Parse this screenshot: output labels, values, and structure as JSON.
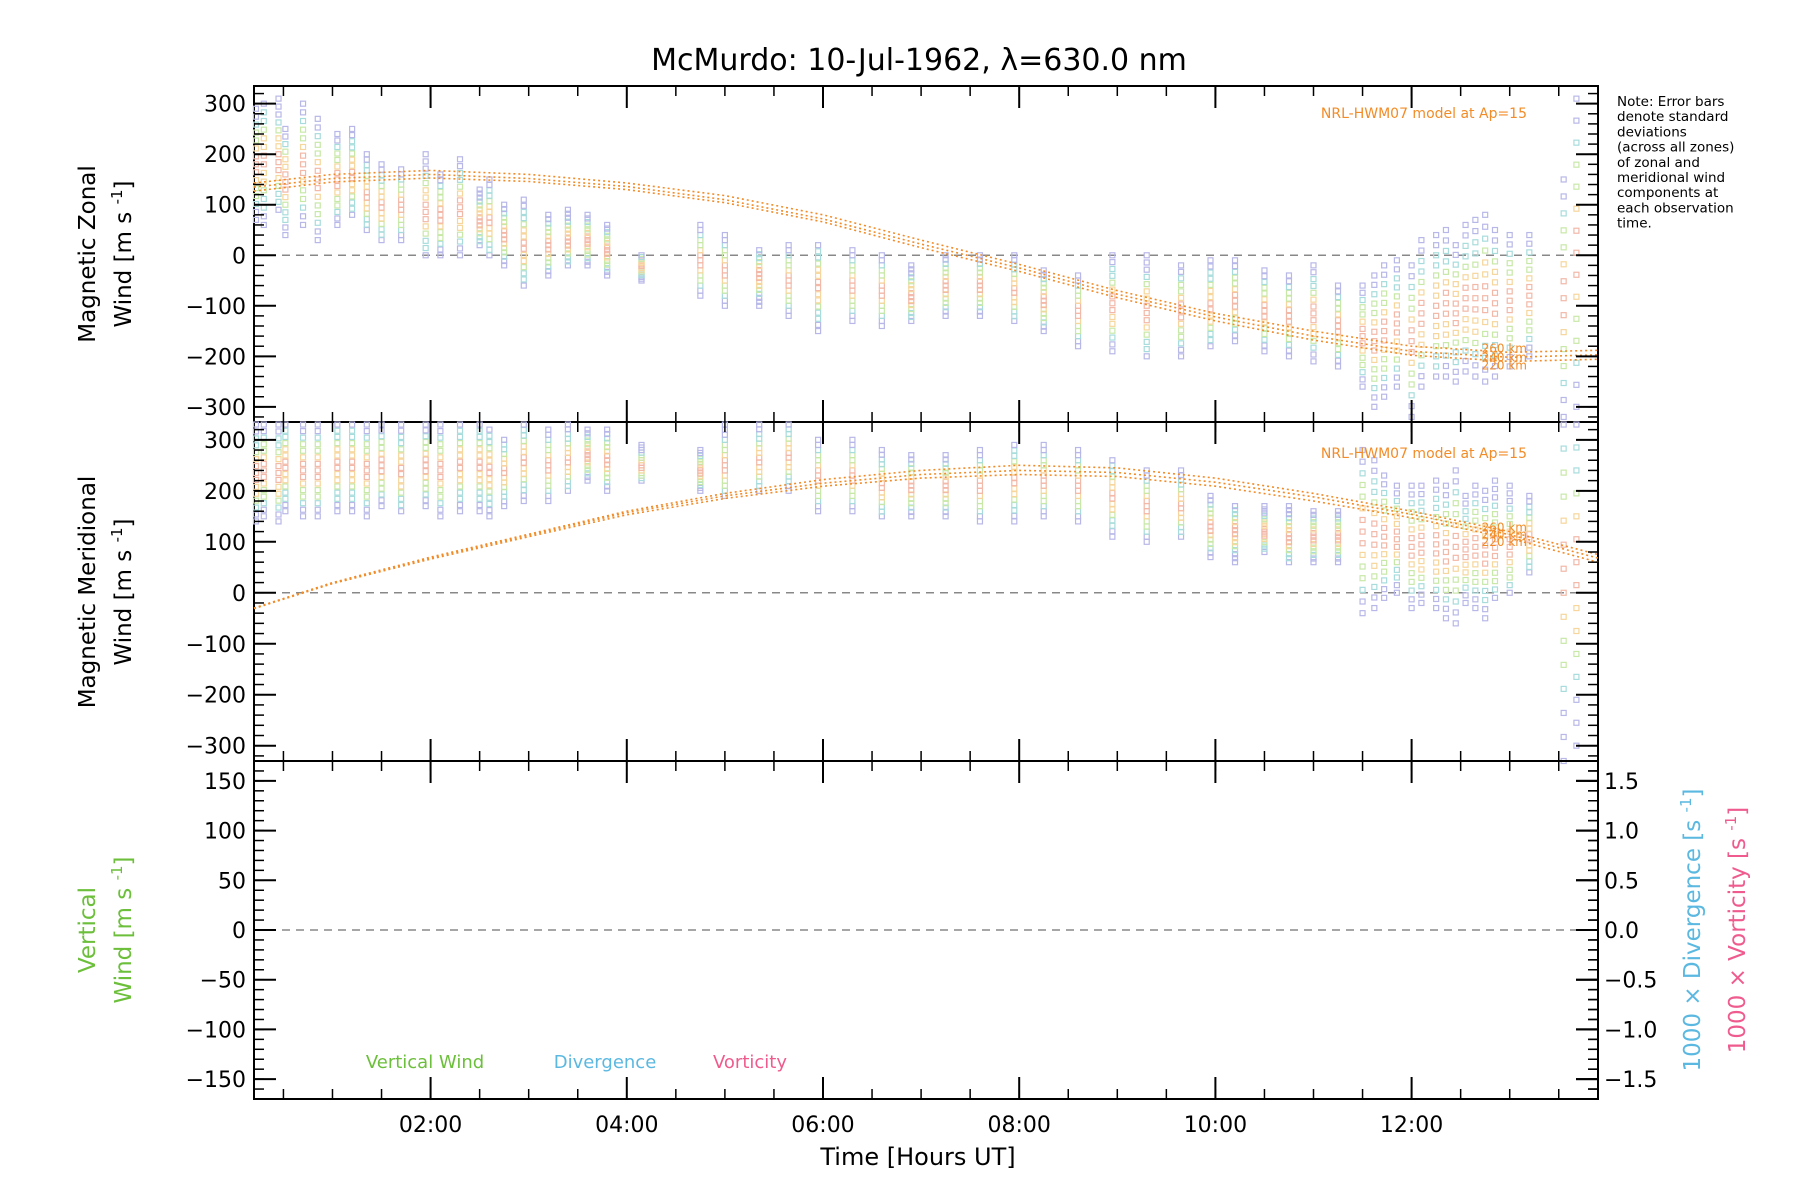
{
  "title": "McMurdo: 10-Jul-1962, λ=630.0 nm",
  "note": [
    "Note: Error bars",
    "denote standard",
    "deviations",
    "(across all zones)",
    "of zonal and",
    "meridional wind",
    "components at",
    "each observation",
    "time."
  ],
  "colors": {
    "model": "#f28c28",
    "zero_line": "#888888",
    "vertical": "#6cbf3a",
    "divergence": "#5bb8e0",
    "vorticity": "#ef5b8e",
    "error_bar_palette": [
      "#f2b8a8",
      "#f6d69c",
      "#c8e8a8",
      "#a8dcdc",
      "#b8b8e8"
    ]
  },
  "chart_data": [
    {
      "type": "scatter",
      "panel": "zonal",
      "ylabel": [
        "Magnetic Zonal",
        "Wind [m s⁻¹]"
      ],
      "ylabel_unit": "m s",
      "ylabel_exp": "-1",
      "ylim": [
        -330,
        335
      ],
      "xlim": [
        0.2,
        13.9
      ],
      "yticks": [
        300,
        200,
        100,
        0,
        -100,
        -200,
        -300
      ],
      "zero_line": true,
      "model_label": "NRL-HWM07 model at Ap=15",
      "model_curves": [
        {
          "name": "260 km",
          "x": [
            0.2,
            1.0,
            2.0,
            3.0,
            4.0,
            5.0,
            6.0,
            7.0,
            8.0,
            9.0,
            10.0,
            11.0,
            12.0,
            13.0,
            13.9
          ],
          "y": [
            143,
            160,
            168,
            160,
            143,
            118,
            80,
            30,
            -18,
            -70,
            -115,
            -150,
            -180,
            -192,
            -188
          ]
        },
        {
          "name": "240 km",
          "x": [
            0.2,
            1.0,
            2.0,
            3.0,
            4.0,
            5.0,
            6.0,
            7.0,
            8.0,
            9.0,
            10.0,
            11.0,
            12.0,
            13.0,
            13.9
          ],
          "y": [
            135,
            152,
            160,
            152,
            136,
            110,
            72,
            22,
            -25,
            -77,
            -122,
            -160,
            -190,
            -202,
            -197
          ]
        },
        {
          "name": "220 km",
          "x": [
            0.2,
            1.0,
            2.0,
            3.0,
            4.0,
            5.0,
            6.0,
            7.0,
            8.0,
            9.0,
            10.0,
            11.0,
            12.0,
            13.0,
            13.9
          ],
          "y": [
            127,
            145,
            153,
            146,
            130,
            104,
            66,
            15,
            -32,
            -84,
            -130,
            -168,
            -198,
            -210,
            -206
          ]
        }
      ],
      "observations": {
        "x": [
          0.22,
          0.3,
          0.45,
          0.52,
          0.7,
          0.85,
          1.05,
          1.2,
          1.35,
          1.5,
          1.7,
          1.95,
          2.1,
          2.3,
          2.5,
          2.6,
          2.75,
          2.95,
          3.2,
          3.4,
          3.6,
          3.8,
          4.15,
          4.75,
          5.0,
          5.35,
          5.65,
          5.95,
          6.3,
          6.6,
          6.9,
          7.25,
          7.6,
          7.95,
          8.25,
          8.6,
          8.95,
          9.3,
          9.65,
          9.95,
          10.2,
          10.5,
          10.75,
          11.0,
          11.25,
          11.5,
          11.62,
          11.72,
          11.85,
          12.0,
          12.1,
          12.25,
          12.35,
          12.45,
          12.55,
          12.65,
          12.75,
          12.85,
          13.0,
          13.2,
          13.55,
          13.68
        ],
        "low": [
          70,
          60,
          90,
          40,
          60,
          30,
          60,
          80,
          50,
          30,
          30,
          0,
          0,
          0,
          20,
          0,
          -20,
          -60,
          -40,
          -20,
          -20,
          -40,
          -50,
          -80,
          -100,
          -100,
          -120,
          -150,
          -130,
          -140,
          -130,
          -120,
          -120,
          -130,
          -150,
          -180,
          -190,
          -200,
          -200,
          -180,
          -170,
          -190,
          -200,
          -210,
          -220,
          -260,
          -300,
          -280,
          -260,
          -320,
          -260,
          -240,
          -240,
          -250,
          -230,
          -240,
          -250,
          -240,
          -220,
          -200,
          -320,
          -300
        ],
        "high": [
          290,
          300,
          310,
          250,
          300,
          270,
          240,
          250,
          200,
          180,
          170,
          200,
          160,
          190,
          130,
          150,
          100,
          110,
          80,
          90,
          80,
          60,
          0,
          60,
          40,
          10,
          20,
          20,
          10,
          0,
          -20,
          0,
          0,
          0,
          -30,
          -40,
          0,
          0,
          -20,
          -10,
          -10,
          -30,
          -40,
          -20,
          -60,
          -60,
          -40,
          -20,
          -10,
          -20,
          30,
          40,
          50,
          20,
          60,
          70,
          80,
          50,
          40,
          40,
          150,
          310
        ],
        "mean": [
          180,
          190,
          190,
          150,
          180,
          150,
          150,
          160,
          120,
          100,
          100,
          90,
          80,
          90,
          70,
          70,
          40,
          20,
          20,
          30,
          30,
          10,
          -20,
          -10,
          -30,
          -40,
          -50,
          -60,
          -60,
          -70,
          -80,
          -60,
          -60,
          -70,
          -90,
          -110,
          -100,
          -110,
          -110,
          -100,
          -90,
          -110,
          -120,
          -120,
          -140,
          -160,
          -170,
          -150,
          -140,
          -170,
          -120,
          -110,
          -100,
          -110,
          -90,
          -90,
          -80,
          -90,
          -90,
          -80,
          -80,
          0
        ]
      }
    },
    {
      "type": "scatter",
      "panel": "meridional",
      "ylabel": [
        "Magnetic Meridional",
        "Wind [m s⁻¹]"
      ],
      "ylabel_unit": "m s",
      "ylabel_exp": "-1",
      "ylim": [
        -330,
        335
      ],
      "xlim": [
        0.2,
        13.9
      ],
      "yticks": [
        300,
        200,
        100,
        0,
        -100,
        -200,
        -300
      ],
      "zero_line": true,
      "model_label": "NRL-HWM07 model at Ap=15",
      "model_curves": [
        {
          "name": "260 km",
          "x": [
            0.2,
            1.0,
            2.0,
            3.0,
            4.0,
            5.0,
            6.0,
            7.0,
            8.0,
            9.0,
            10.0,
            11.0,
            12.0,
            13.0,
            13.9
          ],
          "y": [
            -30,
            20,
            70,
            115,
            160,
            195,
            222,
            240,
            250,
            245,
            225,
            195,
            160,
            120,
            75
          ]
        },
        {
          "name": "240 km",
          "x": [
            0.2,
            1.0,
            2.0,
            3.0,
            4.0,
            5.0,
            6.0,
            7.0,
            8.0,
            9.0,
            10.0,
            11.0,
            12.0,
            13.0,
            13.9
          ],
          "y": [
            -30,
            19,
            68,
            113,
            157,
            190,
            215,
            232,
            240,
            236,
            217,
            188,
            154,
            114,
            68
          ]
        },
        {
          "name": "220 km",
          "x": [
            0.2,
            1.0,
            2.0,
            3.0,
            4.0,
            5.0,
            6.0,
            7.0,
            8.0,
            9.0,
            10.0,
            11.0,
            12.0,
            13.0,
            13.9
          ],
          "y": [
            -31,
            18,
            66,
            110,
            153,
            185,
            209,
            225,
            232,
            228,
            209,
            180,
            147,
            107,
            60
          ]
        }
      ],
      "observations": {
        "x": [
          0.22,
          0.3,
          0.45,
          0.52,
          0.7,
          0.85,
          1.05,
          1.2,
          1.35,
          1.5,
          1.7,
          1.95,
          2.1,
          2.3,
          2.5,
          2.6,
          2.75,
          2.95,
          3.2,
          3.4,
          3.6,
          3.8,
          4.15,
          4.75,
          5.0,
          5.35,
          5.65,
          5.95,
          6.3,
          6.6,
          6.9,
          7.25,
          7.6,
          7.95,
          8.25,
          8.6,
          8.95,
          9.3,
          9.65,
          9.95,
          10.2,
          10.5,
          10.75,
          11.0,
          11.25,
          11.5,
          11.62,
          11.72,
          11.85,
          12.0,
          12.1,
          12.25,
          12.35,
          12.45,
          12.55,
          12.65,
          12.75,
          12.85,
          13.0,
          13.2,
          13.55,
          13.68
        ],
        "low": [
          140,
          150,
          140,
          160,
          150,
          150,
          160,
          160,
          150,
          170,
          160,
          170,
          150,
          160,
          160,
          150,
          170,
          180,
          180,
          200,
          220,
          200,
          220,
          200,
          190,
          200,
          200,
          160,
          160,
          150,
          150,
          150,
          140,
          140,
          150,
          140,
          110,
          100,
          110,
          70,
          60,
          80,
          60,
          60,
          60,
          -40,
          -30,
          -10,
          0,
          -30,
          -20,
          -30,
          -50,
          -60,
          -20,
          -30,
          -50,
          -10,
          0,
          40,
          -330,
          -300
        ],
        "high": [
          330,
          330,
          330,
          330,
          330,
          330,
          330,
          330,
          330,
          330,
          330,
          330,
          330,
          330,
          330,
          320,
          300,
          330,
          320,
          330,
          320,
          320,
          290,
          280,
          330,
          330,
          330,
          300,
          300,
          280,
          270,
          270,
          280,
          290,
          290,
          280,
          260,
          240,
          240,
          190,
          170,
          170,
          170,
          160,
          160,
          280,
          260,
          230,
          210,
          210,
          210,
          220,
          210,
          240,
          190,
          210,
          200,
          220,
          210,
          190,
          330,
          330
        ],
        "mean": [
          230,
          240,
          230,
          250,
          240,
          240,
          250,
          250,
          240,
          250,
          240,
          250,
          240,
          250,
          250,
          240,
          240,
          260,
          250,
          260,
          270,
          260,
          250,
          240,
          250,
          260,
          270,
          230,
          230,
          210,
          210,
          210,
          210,
          220,
          220,
          210,
          190,
          170,
          170,
          130,
          120,
          120,
          110,
          110,
          110,
          120,
          110,
          110,
          110,
          90,
          90,
          90,
          80,
          90,
          80,
          90,
          80,
          90,
          90,
          110,
          50,
          50
        ]
      }
    },
    {
      "type": "line",
      "panel": "vertical",
      "ylabel": [
        "Vertical",
        "Wind [m s⁻¹]"
      ],
      "ylabel_unit": "m s",
      "ylabel_exp": "-1",
      "ylim": [
        -170,
        170
      ],
      "yticks": [
        150,
        100,
        50,
        0,
        -50,
        -100,
        -150
      ],
      "xlim": [
        0.2,
        13.9
      ],
      "xlabel": "Time [Hours UT]",
      "xticks": [
        {
          "v": 2,
          "label": "02:00"
        },
        {
          "v": 4,
          "label": "04:00"
        },
        {
          "v": 6,
          "label": "06:00"
        },
        {
          "v": 8,
          "label": "08:00"
        },
        {
          "v": 10,
          "label": "10:00"
        },
        {
          "v": 12,
          "label": "12:00"
        }
      ],
      "right_axis": {
        "ylim": [
          -1.7,
          1.7
        ],
        "yticks": [
          1.5,
          1.0,
          0.5,
          0.0,
          -0.5,
          -1.0,
          -1.5
        ],
        "tick_labels": [
          "1.5",
          "1.0",
          "0.5",
          "0.0",
          "−0.5",
          "−1.0",
          "−1.5"
        ],
        "labels": [
          {
            "text": "1000 × Divergence [s⁻¹]",
            "prefix": "1000 × Divergence ",
            "unit": "s",
            "exp": "-1"
          },
          {
            "text": "1000 × Vorticity [s⁻¹]",
            "prefix": "1000 × Vorticity ",
            "unit": "s",
            "exp": "-1"
          }
        ]
      },
      "legend": [
        "Vertical Wind",
        "Divergence",
        "Vorticity"
      ],
      "series": [
        {
          "name": "Vertical Wind",
          "values": []
        },
        {
          "name": "Divergence",
          "values": []
        },
        {
          "name": "Vorticity",
          "values": []
        }
      ],
      "zero_line": true
    }
  ]
}
